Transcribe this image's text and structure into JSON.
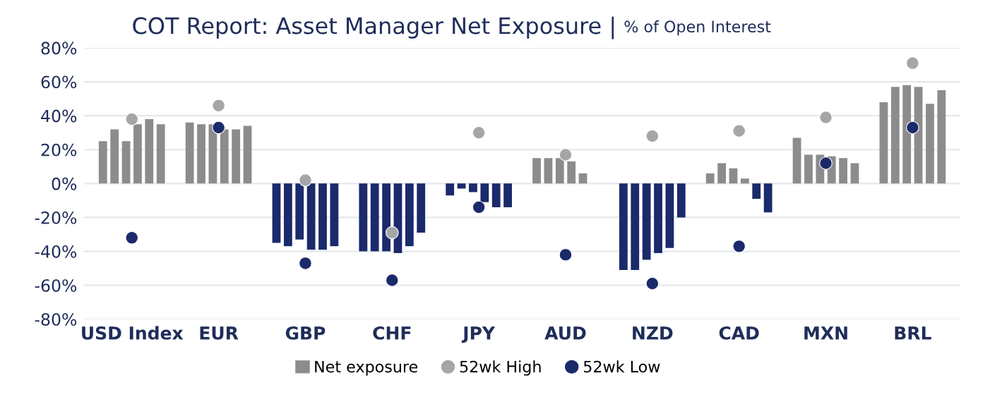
{
  "chart_data": {
    "type": "bar",
    "title": "COT Report: Asset Manager Net Exposure |",
    "subtitle": "% of Open Interest",
    "categories": [
      "USD Index",
      "EUR",
      "GBP",
      "CHF",
      "JPY",
      "AUD",
      "NZD",
      "CAD",
      "MXN",
      "BRL"
    ],
    "series": [
      {
        "name": "Net exposure",
        "color": "#8c8c8c",
        "values": [
          25,
          36,
          -35,
          -40,
          -7,
          15,
          -51,
          6,
          27,
          48
        ],
        "colors": [
          "#8c8c8c",
          "#8c8c8c",
          "#1b2a6b",
          "#1b2a6b",
          "#1b2a6b",
          "#8c8c8c",
          "#1b2a6b",
          "#8c8c8c",
          "#8c8c8c",
          "#8c8c8c"
        ]
      },
      {
        "color": "#8c8c8c",
        "values": [
          32,
          35,
          -37,
          -40,
          -3,
          15,
          -51,
          12,
          17,
          57
        ],
        "colors": [
          "#8c8c8c",
          "#8c8c8c",
          "#1b2a6b",
          "#1b2a6b",
          "#1b2a6b",
          "#8c8c8c",
          "#1b2a6b",
          "#8c8c8c",
          "#8c8c8c",
          "#8c8c8c"
        ]
      },
      {
        "color": "#8c8c8c",
        "values": [
          25,
          35,
          -33,
          -40,
          -5,
          15,
          -45,
          9,
          17,
          58
        ],
        "colors": [
          "#8c8c8c",
          "#8c8c8c",
          "#1b2a6b",
          "#1b2a6b",
          "#1b2a6b",
          "#8c8c8c",
          "#1b2a6b",
          "#8c8c8c",
          "#8c8c8c",
          "#8c8c8c"
        ]
      },
      {
        "color": "#8c8c8c",
        "values": [
          35,
          32,
          -39,
          -41,
          -11,
          13,
          -41,
          3,
          16,
          57
        ],
        "colors": [
          "#8c8c8c",
          "#8c8c8c",
          "#1b2a6b",
          "#1b2a6b",
          "#1b2a6b",
          "#8c8c8c",
          "#1b2a6b",
          "#8c8c8c",
          "#8c8c8c",
          "#8c8c8c"
        ]
      },
      {
        "color": "#8c8c8c",
        "values": [
          38,
          32,
          -39,
          -37,
          -14,
          6,
          -38,
          -9,
          15,
          47
        ],
        "colors": [
          "#8c8c8c",
          "#8c8c8c",
          "#1b2a6b",
          "#1b2a6b",
          "#1b2a6b",
          "#8c8c8c",
          "#1b2a6b",
          "#1b2a6b",
          "#8c8c8c",
          "#8c8c8c"
        ]
      },
      {
        "color": "#8c8c8c",
        "values": [
          35,
          34,
          -37,
          -29,
          -14,
          0,
          -20,
          -17,
          12,
          55
        ],
        "colors": [
          "#8c8c8c",
          "#8c8c8c",
          "#1b2a6b",
          "#1b2a6b",
          "#1b2a6b",
          "#8c8c8c",
          "#1b2a6b",
          "#1b2a6b",
          "#8c8c8c",
          "#8c8c8c"
        ]
      },
      {
        "type": "scatter",
        "name": "52wk High",
        "color": "#a6a6a6",
        "x": [
          "USD Index",
          "EUR",
          "GBP",
          "CHF",
          "JPY",
          "AUD",
          "NZD",
          "CAD",
          "MXN",
          "BRL"
        ],
        "values": [
          38,
          46,
          2,
          -29,
          30,
          17,
          28,
          31,
          39,
          71
        ]
      },
      {
        "type": "scatter",
        "name": "52wk Low",
        "color": "#1b2a6b",
        "x": [
          "USD Index",
          "EUR",
          "GBP",
          "CHF",
          "JPY",
          "AUD",
          "NZD",
          "CAD",
          "MXN",
          "BRL"
        ],
        "values": [
          -32,
          33,
          -47,
          -57,
          -14,
          -42,
          -59,
          -37,
          12,
          33
        ]
      }
    ],
    "ylim": [
      -80,
      80
    ],
    "yticks": [
      {
        "value": -80,
        "label": "-80%"
      },
      {
        "value": -60,
        "label": "-60%"
      },
      {
        "value": -40,
        "label": "-40%"
      },
      {
        "value": -20,
        "label": "-20%"
      },
      {
        "value": 0,
        "label": "0%"
      },
      {
        "value": 20,
        "label": "20%"
      },
      {
        "value": 40,
        "label": "40%"
      },
      {
        "value": 60,
        "label": "60%"
      },
      {
        "value": 80,
        "label": "80%"
      }
    ],
    "grid": "y",
    "legend": "bottom",
    "marker": "circle"
  }
}
